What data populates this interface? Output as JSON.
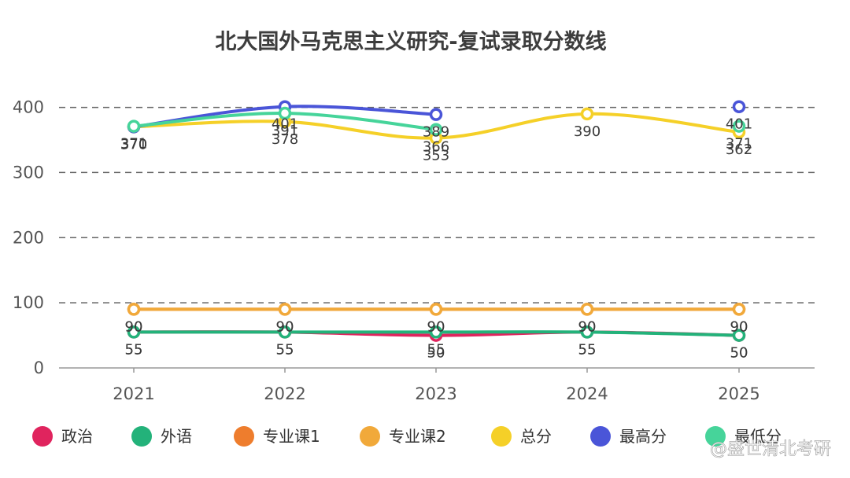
{
  "chart_data": {
    "type": "line",
    "title": "北大国外马克思主义研究-复试录取分数线",
    "categories": [
      "2021",
      "2022",
      "2023",
      "2024",
      "2025"
    ],
    "ylim": [
      0,
      420
    ],
    "yticks": [
      0,
      100,
      200,
      300,
      400
    ],
    "grid": "dashed horizontal",
    "legend_position": "bottom",
    "series": [
      {
        "name": "政治",
        "color": "#e0245e",
        "values": [
          55,
          55,
          50,
          55,
          50
        ],
        "labels": [
          "55",
          "55",
          "50",
          "55",
          "50"
        ]
      },
      {
        "name": "外语",
        "color": "#23b27a",
        "values": [
          55,
          55,
          55,
          55,
          50
        ],
        "labels": [
          "55",
          "55",
          "55",
          "55",
          "50"
        ]
      },
      {
        "name": "专业课1",
        "color": "#ee7d2d",
        "values": [
          90,
          90,
          90,
          90,
          90
        ],
        "labels": [
          "90",
          "90",
          "90",
          "90",
          "90"
        ]
      },
      {
        "name": "专业课2",
        "color": "#f1a93a",
        "values": [
          90,
          90,
          90,
          90,
          90
        ],
        "labels": [
          "90",
          "90",
          "90",
          "90",
          "90"
        ]
      },
      {
        "name": "总分",
        "color": "#f5d028",
        "values": [
          370,
          378,
          353,
          390,
          362
        ],
        "labels": [
          "370",
          "378",
          "353",
          "390",
          "362"
        ]
      },
      {
        "name": "最高分",
        "color": "#4a55d8",
        "values": [
          370,
          401,
          389,
          null,
          401
        ],
        "labels": [
          "370",
          "401",
          "389",
          null,
          "401"
        ]
      },
      {
        "name": "最低分",
        "color": "#46d49a",
        "values": [
          371,
          391,
          366,
          null,
          371
        ],
        "labels": [
          "371",
          "391",
          "366",
          null,
          "371"
        ]
      }
    ]
  },
  "watermark": "@盛世清北考研"
}
